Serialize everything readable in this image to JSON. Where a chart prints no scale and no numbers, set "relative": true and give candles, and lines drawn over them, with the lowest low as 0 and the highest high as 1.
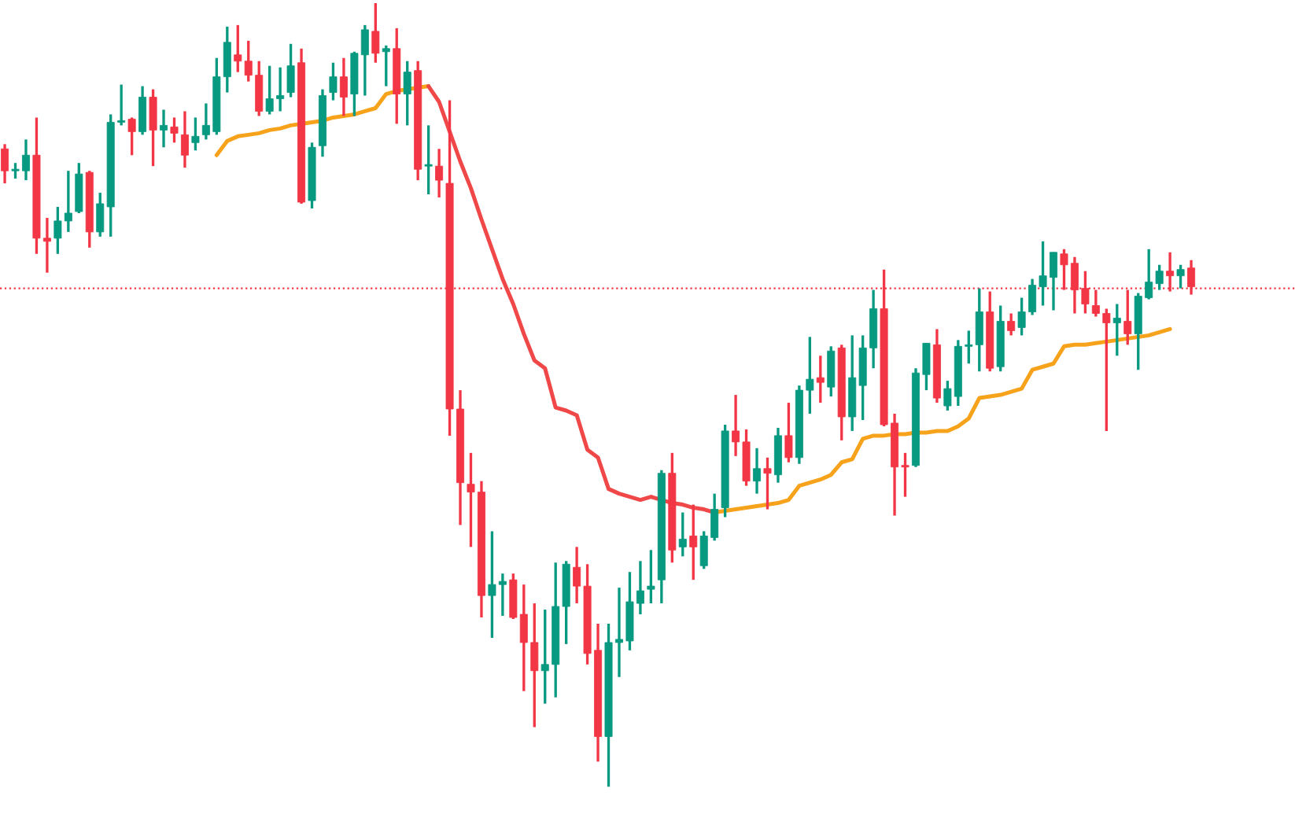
{
  "chart_data": {
    "type": "candlestick",
    "relative": true,
    "categories": [
      null,
      null,
      null,
      null,
      null,
      null,
      null,
      null,
      null,
      null,
      null,
      null,
      null,
      null,
      null,
      null,
      null,
      null,
      null,
      null,
      null,
      null,
      null,
      null,
      null,
      null,
      null,
      null,
      null,
      null,
      null,
      null,
      null,
      null,
      null,
      null,
      null,
      null,
      null,
      null,
      null,
      null,
      null,
      null,
      null,
      null,
      null,
      null,
      null,
      null,
      null,
      null,
      null,
      null,
      null,
      null,
      null,
      null,
      null,
      null,
      null,
      null,
      null,
      null,
      null,
      null,
      null,
      null,
      null,
      null,
      null,
      null,
      null,
      null,
      null,
      null,
      null,
      null,
      null,
      null,
      null,
      null,
      null,
      null,
      null,
      null,
      null,
      null,
      null,
      null,
      null,
      null,
      null,
      null,
      null,
      null,
      null,
      null,
      null,
      null,
      null,
      null,
      null,
      null,
      null,
      null,
      null,
      null,
      null,
      null,
      null,
      null,
      null
    ],
    "ohlc": [
      [
        0.814,
        0.82,
        0.77,
        0.786
      ],
      [
        0.786,
        0.796,
        0.776,
        0.788
      ],
      [
        0.786,
        0.826,
        0.774,
        0.806
      ],
      [
        0.806,
        0.854,
        0.68,
        0.7
      ],
      [
        0.7,
        0.726,
        0.656,
        0.696
      ],
      [
        0.7,
        0.74,
        0.68,
        0.722
      ],
      [
        0.722,
        0.786,
        0.708,
        0.732
      ],
      [
        0.734,
        0.796,
        0.732,
        0.782
      ],
      [
        0.784,
        0.786,
        0.688,
        0.708
      ],
      [
        0.708,
        0.758,
        0.702,
        0.744
      ],
      [
        0.74,
        0.858,
        0.702,
        0.848
      ],
      [
        0.848,
        0.896,
        0.844,
        0.85
      ],
      [
        0.852,
        0.854,
        0.806,
        0.836
      ],
      [
        0.836,
        0.894,
        0.832,
        0.88
      ],
      [
        0.88,
        0.89,
        0.792,
        0.838
      ],
      [
        0.838,
        0.864,
        0.816,
        0.844
      ],
      [
        0.842,
        0.854,
        0.822,
        0.834
      ],
      [
        0.832,
        0.862,
        0.79,
        0.806
      ],
      [
        0.822,
        0.854,
        0.812,
        0.83
      ],
      [
        0.832,
        0.872,
        0.826,
        0.844
      ],
      [
        0.836,
        0.93,
        0.832,
        0.906
      ],
      [
        0.906,
        0.97,
        0.886,
        0.95
      ],
      [
        0.934,
        0.972,
        0.912,
        0.926
      ],
      [
        0.926,
        0.952,
        0.9,
        0.908
      ],
      [
        0.908,
        0.926,
        0.856,
        0.862
      ],
      [
        0.862,
        0.92,
        0.858,
        0.878
      ],
      [
        0.878,
        0.918,
        0.862,
        0.882
      ],
      [
        0.886,
        0.948,
        0.88,
        0.92
      ],
      [
        0.924,
        0.942,
        0.744,
        0.746
      ],
      [
        0.748,
        0.822,
        0.738,
        0.816
      ],
      [
        0.818,
        0.89,
        0.804,
        0.882
      ],
      [
        0.886,
        0.924,
        0.876,
        0.906
      ],
      [
        0.906,
        0.93,
        0.856,
        0.88
      ],
      [
        0.884,
        0.938,
        0.856,
        0.936
      ],
      [
        0.934,
        0.972,
        0.882,
        0.966
      ],
      [
        0.964,
        1.0,
        0.924,
        0.936
      ],
      [
        0.938,
        0.946,
        0.894,
        0.942
      ],
      [
        0.942,
        0.968,
        0.846,
        0.884
      ],
      [
        0.884,
        0.926,
        0.844,
        0.912
      ],
      [
        0.914,
        0.926,
        0.774,
        0.788
      ],
      [
        0.792,
        0.844,
        0.756,
        0.794
      ],
      [
        0.792,
        0.814,
        0.752,
        0.774
      ],
      [
        0.77,
        0.876,
        0.448,
        0.482
      ],
      [
        0.482,
        0.506,
        0.334,
        0.388
      ],
      [
        0.386,
        0.426,
        0.306,
        0.376
      ],
      [
        0.376,
        0.39,
        0.216,
        0.244
      ],
      [
        0.244,
        0.326,
        0.19,
        0.258
      ],
      [
        0.258,
        0.272,
        0.218,
        0.262
      ],
      [
        0.264,
        0.272,
        0.214,
        0.216
      ],
      [
        0.22,
        0.258,
        0.122,
        0.184
      ],
      [
        0.184,
        0.234,
        0.076,
        0.148
      ],
      [
        0.148,
        0.226,
        0.106,
        0.156
      ],
      [
        0.156,
        0.286,
        0.114,
        0.23
      ],
      [
        0.23,
        0.288,
        0.182,
        0.284
      ],
      [
        0.28,
        0.306,
        0.234,
        0.256
      ],
      [
        0.256,
        0.284,
        0.156,
        0.17
      ],
      [
        0.174,
        0.208,
        0.032,
        0.064
      ],
      [
        0.064,
        0.208,
        0.0,
        0.184
      ],
      [
        0.184,
        0.254,
        0.14,
        0.188
      ],
      [
        0.186,
        0.274,
        0.174,
        0.236
      ],
      [
        0.234,
        0.288,
        0.22,
        0.25
      ],
      [
        0.252,
        0.302,
        0.234,
        0.256
      ],
      [
        0.264,
        0.404,
        0.234,
        0.4
      ],
      [
        0.4,
        0.426,
        0.286,
        0.302
      ],
      [
        0.306,
        0.35,
        0.294,
        0.316
      ],
      [
        0.32,
        0.36,
        0.264,
        0.306
      ],
      [
        0.282,
        0.326,
        0.278,
        0.32
      ],
      [
        0.318,
        0.374,
        0.314,
        0.354
      ],
      [
        0.356,
        0.462,
        0.344,
        0.454
      ],
      [
        0.454,
        0.5,
        0.422,
        0.44
      ],
      [
        0.44,
        0.456,
        0.384,
        0.39
      ],
      [
        0.39,
        0.432,
        0.374,
        0.406
      ],
      [
        0.406,
        0.42,
        0.354,
        0.4
      ],
      [
        0.398,
        0.458,
        0.388,
        0.448
      ],
      [
        0.448,
        0.49,
        0.414,
        0.42
      ],
      [
        0.42,
        0.512,
        0.412,
        0.506
      ],
      [
        0.506,
        0.574,
        0.476,
        0.52
      ],
      [
        0.522,
        0.55,
        0.49,
        0.516
      ],
      [
        0.51,
        0.562,
        0.498,
        0.556
      ],
      [
        0.56,
        0.564,
        0.442,
        0.472
      ],
      [
        0.472,
        0.576,
        0.454,
        0.522
      ],
      [
        0.512,
        0.576,
        0.468,
        0.56
      ],
      [
        0.56,
        0.634,
        0.534,
        0.61
      ],
      [
        0.61,
        0.66,
        0.46,
        0.462
      ],
      [
        0.464,
        0.476,
        0.346,
        0.408
      ],
      [
        0.41,
        0.426,
        0.37,
        0.408
      ],
      [
        0.41,
        0.534,
        0.408,
        0.528
      ],
      [
        0.526,
        0.566,
        0.506,
        0.566
      ],
      [
        0.564,
        0.584,
        0.49,
        0.496
      ],
      [
        0.486,
        0.518,
        0.48,
        0.508
      ],
      [
        0.498,
        0.57,
        0.486,
        0.562
      ],
      [
        0.562,
        0.582,
        0.54,
        0.564
      ],
      [
        0.564,
        0.636,
        0.53,
        0.606
      ],
      [
        0.606,
        0.632,
        0.53,
        0.534
      ],
      [
        0.536,
        0.614,
        0.53,
        0.594
      ],
      [
        0.594,
        0.604,
        0.576,
        0.582
      ],
      [
        0.586,
        0.624,
        0.576,
        0.606
      ],
      [
        0.606,
        0.648,
        0.602,
        0.64
      ],
      [
        0.638,
        0.696,
        0.614,
        0.652
      ],
      [
        0.65,
        0.682,
        0.608,
        0.682
      ],
      [
        0.68,
        0.686,
        0.634,
        0.666
      ],
      [
        0.668,
        0.676,
        0.604,
        0.634
      ],
      [
        0.636,
        0.658,
        0.604,
        0.616
      ],
      [
        0.614,
        0.634,
        0.6,
        0.604
      ],
      [
        0.604,
        0.61,
        0.454,
        0.592
      ],
      [
        0.592,
        0.616,
        0.55,
        0.598
      ],
      [
        0.594,
        0.634,
        0.564,
        0.578
      ],
      [
        0.578,
        0.63,
        0.532,
        0.626
      ],
      [
        0.624,
        0.686,
        0.622,
        0.644
      ],
      [
        0.642,
        0.666,
        0.634,
        0.658
      ],
      [
        0.658,
        0.682,
        0.632,
        0.652
      ],
      [
        0.652,
        0.666,
        0.636,
        0.66
      ],
      [
        0.662,
        0.672,
        0.628,
        0.638
      ]
    ],
    "series": [
      {
        "type": "line",
        "color": "#f7a21b",
        "values": [
          null,
          null,
          null,
          null,
          null,
          null,
          null,
          null,
          null,
          null,
          null,
          null,
          null,
          null,
          null,
          null,
          null,
          null,
          null,
          null,
          0.806,
          0.824,
          0.83,
          0.832,
          0.834,
          0.838,
          0.84,
          0.844,
          0.846,
          0.848,
          0.85,
          0.854,
          0.856,
          0.858,
          0.862,
          0.866,
          0.884,
          0.888,
          0.89,
          0.892,
          0.894,
          null,
          null,
          null,
          null,
          null,
          null,
          null,
          null,
          null,
          null,
          null,
          null,
          null,
          null,
          null,
          null,
          null,
          null,
          null,
          null,
          null,
          null,
          null,
          null,
          null,
          null,
          0.35,
          0.352,
          0.354,
          0.356,
          0.358,
          0.36,
          0.362,
          0.366,
          0.384,
          0.388,
          0.392,
          0.398,
          0.414,
          0.418,
          0.444,
          0.448,
          0.448,
          0.45,
          0.45,
          0.452,
          0.452,
          0.454,
          0.454,
          0.46,
          0.47,
          0.496,
          0.498,
          0.5,
          0.504,
          0.508,
          0.532,
          0.536,
          0.54,
          0.562,
          0.564,
          0.564,
          0.566,
          0.568,
          0.57,
          0.572,
          0.574,
          0.576,
          0.58,
          0.584,
          null,
          null
        ]
      },
      {
        "type": "line",
        "color": "#f04848",
        "values": [
          null,
          null,
          null,
          null,
          null,
          null,
          null,
          null,
          null,
          null,
          null,
          null,
          null,
          null,
          null,
          null,
          null,
          null,
          null,
          null,
          null,
          null,
          null,
          null,
          null,
          null,
          null,
          null,
          null,
          null,
          null,
          null,
          null,
          null,
          null,
          null,
          null,
          null,
          null,
          null,
          0.894,
          0.874,
          0.836,
          0.798,
          0.764,
          0.724,
          0.686,
          0.648,
          0.616,
          0.578,
          0.544,
          0.534,
          0.484,
          0.48,
          0.474,
          0.43,
          0.42,
          0.38,
          0.374,
          0.37,
          0.366,
          0.37,
          0.366,
          0.362,
          0.36,
          0.356,
          0.354,
          0.35,
          null,
          null,
          null,
          null,
          null,
          null,
          null,
          null,
          null,
          null,
          null,
          null,
          null,
          null,
          null,
          null,
          null,
          null,
          null,
          null,
          null,
          null,
          null,
          null,
          null,
          null,
          null,
          null,
          null,
          null,
          null,
          null,
          null,
          null,
          null,
          null,
          null,
          null,
          null,
          null,
          null,
          null,
          null,
          null,
          null
        ]
      }
    ],
    "ref_lines": [
      {
        "axis": "y",
        "value": 0.636,
        "color": "#f23645",
        "line_style": "dotted"
      }
    ]
  }
}
